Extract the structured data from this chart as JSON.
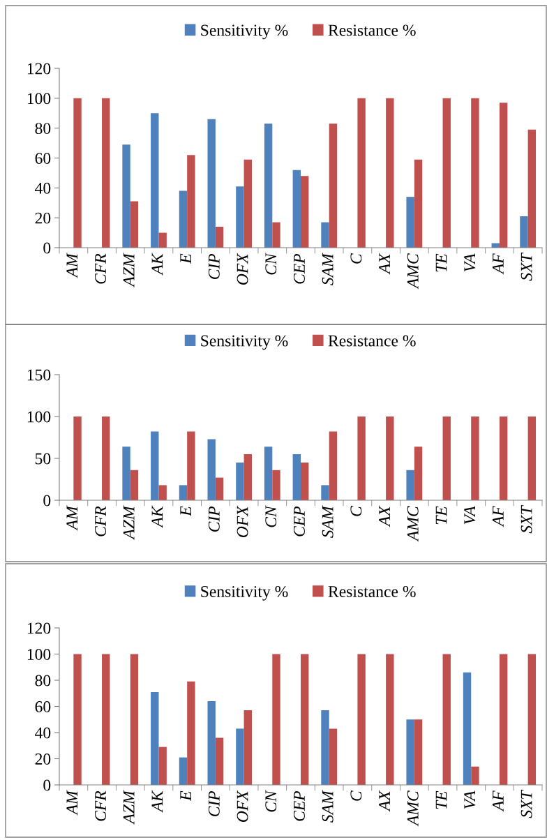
{
  "chart_data": [
    {
      "type": "bar",
      "categories": [
        "AM",
        "CFR",
        "AZM",
        "AK",
        "E",
        "CIP",
        "OFX",
        "CN",
        "CEP",
        "SAM",
        "C",
        "AX",
        "AMC",
        "TE",
        "VA",
        "AF",
        "SXT"
      ],
      "ylim": [
        0,
        120
      ],
      "yticks": [
        0,
        20,
        40,
        60,
        80,
        100,
        120
      ],
      "grid": false,
      "legend": "top",
      "series": [
        {
          "name": "Sensitivity %",
          "color": "#4f81bd",
          "values": [
            0,
            0,
            69,
            90,
            38,
            86,
            41,
            83,
            52,
            17,
            0,
            0,
            34,
            0,
            0,
            3,
            21
          ]
        },
        {
          "name": "Resistance %",
          "color": "#c0504d",
          "values": [
            100,
            100,
            31,
            10,
            62,
            14,
            59,
            17,
            48,
            83,
            100,
            100,
            59,
            100,
            100,
            97,
            79
          ]
        }
      ]
    },
    {
      "type": "bar",
      "categories": [
        "AM",
        "CFR",
        "AZM",
        "AK",
        "E",
        "CIP",
        "OFX",
        "CN",
        "CEP",
        "SAM",
        "C",
        "AX",
        "AMC",
        "TE",
        "VA",
        "AF",
        "SXT"
      ],
      "ylim": [
        0,
        150
      ],
      "yticks": [
        0,
        50,
        100,
        150
      ],
      "grid": false,
      "legend": "top",
      "series": [
        {
          "name": "Sensitivity %",
          "color": "#4f81bd",
          "values": [
            0,
            0,
            64,
            82,
            18,
            73,
            45,
            64,
            55,
            18,
            0,
            0,
            36,
            0,
            0,
            0,
            0
          ]
        },
        {
          "name": "Resistance %",
          "color": "#c0504d",
          "values": [
            100,
            100,
            36,
            18,
            82,
            27,
            55,
            36,
            45,
            82,
            100,
            100,
            64,
            100,
            100,
            100,
            100
          ]
        }
      ]
    },
    {
      "type": "bar",
      "categories": [
        "AM",
        "CFR",
        "AZM",
        "AK",
        "E",
        "CIP",
        "OFX",
        "CN",
        "CEP",
        "SAM",
        "C",
        "AX",
        "AMC",
        "TE",
        "VA",
        "AF",
        "SXT"
      ],
      "ylim": [
        0,
        120
      ],
      "yticks": [
        0,
        20,
        40,
        60,
        80,
        100,
        120
      ],
      "grid": false,
      "legend": "top",
      "series": [
        {
          "name": "Sensitivity %",
          "color": "#4f81bd",
          "values": [
            0,
            0,
            0,
            71,
            21,
            64,
            43,
            0,
            0,
            57,
            0,
            0,
            50,
            0,
            86,
            0,
            0
          ]
        },
        {
          "name": "Resistance %",
          "color": "#c0504d",
          "values": [
            100,
            100,
            100,
            29,
            79,
            36,
            57,
            100,
            100,
            43,
            100,
            100,
            50,
            100,
            14,
            100,
            100
          ]
        }
      ]
    }
  ]
}
